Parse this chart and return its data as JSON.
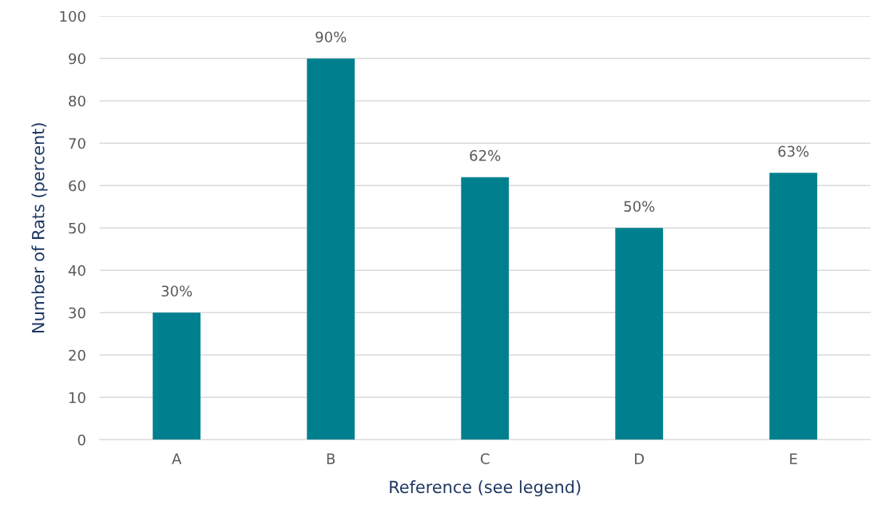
{
  "chart_data": {
    "type": "bar",
    "xlabel": "Reference (see legend)",
    "ylabel": "Number of Rats (percent)",
    "categories": [
      "A",
      "B",
      "C",
      "D",
      "E"
    ],
    "values": [
      30,
      90,
      62,
      50,
      63
    ],
    "value_labels": [
      "30%",
      "90%",
      "62%",
      "50%",
      "63%"
    ],
    "color": "#00808f",
    "ylim": [
      0,
      100
    ],
    "yticks": [
      0,
      10,
      20,
      30,
      40,
      50,
      60,
      70,
      80,
      90,
      100
    ],
    "grid": "y",
    "legend": false
  }
}
